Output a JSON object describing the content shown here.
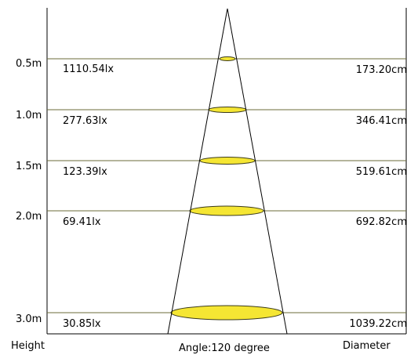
{
  "angle_label": "Angle:120 degree",
  "footer": {
    "height_label": "Height",
    "diameter_label": "Diameter"
  },
  "colors": {
    "frame": "#000000",
    "level_line": "#6b6b3a",
    "spot_fill": "#f5e633",
    "spot_stroke": "#3a3a1a"
  },
  "levels": [
    {
      "height": "0.5m",
      "lux": "1110.54lx",
      "diameter": "173.20cm"
    },
    {
      "height": "1.0m",
      "lux": "277.63lx",
      "diameter": "346.41cm"
    },
    {
      "height": "1.5m",
      "lux": "123.39lx",
      "diameter": "519.61cm"
    },
    {
      "height": "2.0m",
      "lux": "69.41lx",
      "diameter": "692.82cm"
    },
    {
      "height": "3.0m",
      "lux": "30.85lx",
      "diameter": "1039.22cm"
    }
  ]
}
